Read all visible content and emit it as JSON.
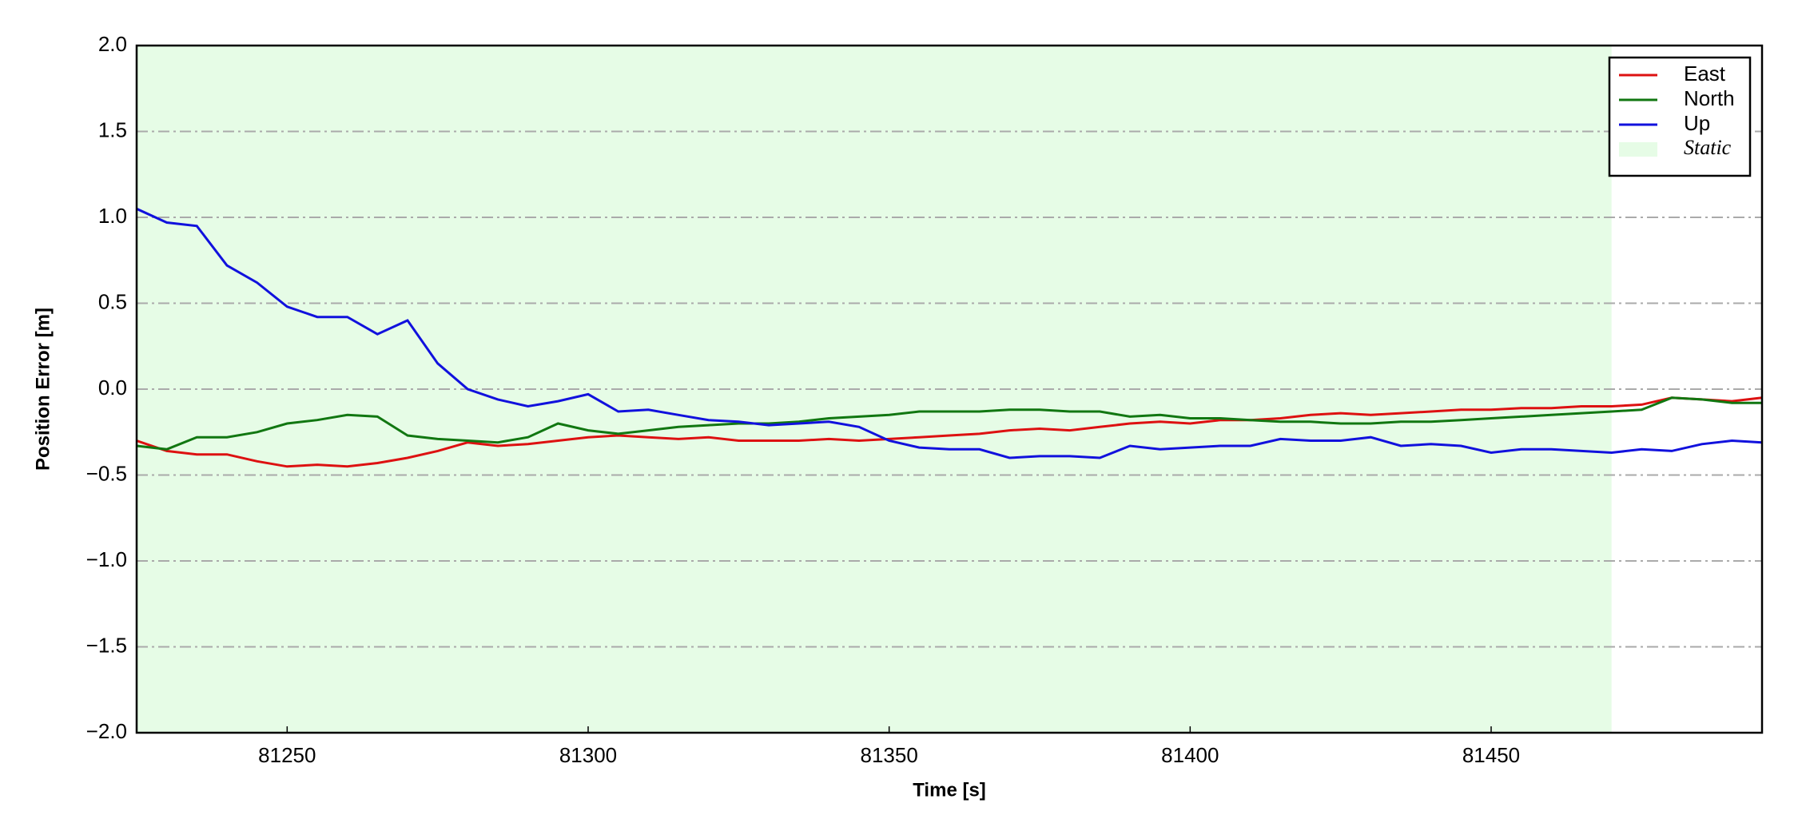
{
  "chart_data": {
    "type": "line",
    "xlabel": "Time [s]",
    "ylabel": "Position Error [m]",
    "x": [
      81225,
      81230,
      81235,
      81240,
      81245,
      81250,
      81255,
      81260,
      81265,
      81270,
      81275,
      81280,
      81285,
      81290,
      81295,
      81300,
      81305,
      81310,
      81315,
      81320,
      81325,
      81330,
      81335,
      81340,
      81345,
      81350,
      81355,
      81360,
      81365,
      81370,
      81375,
      81380,
      81385,
      81390,
      81395,
      81400,
      81405,
      81410,
      81415,
      81420,
      81425,
      81430,
      81435,
      81440,
      81445,
      81450,
      81455,
      81460,
      81465,
      81470,
      81475,
      81480,
      81485,
      81490,
      81495
    ],
    "series": [
      {
        "name": "East",
        "color": "#dd1111",
        "values": [
          -0.3,
          -0.36,
          -0.38,
          -0.38,
          -0.42,
          -0.45,
          -0.44,
          -0.45,
          -0.43,
          -0.4,
          -0.36,
          -0.31,
          -0.33,
          -0.32,
          -0.3,
          -0.28,
          -0.27,
          -0.28,
          -0.29,
          -0.28,
          -0.3,
          -0.3,
          -0.3,
          -0.29,
          -0.3,
          -0.29,
          -0.28,
          -0.27,
          -0.26,
          -0.24,
          -0.23,
          -0.24,
          -0.22,
          -0.2,
          -0.19,
          -0.2,
          -0.18,
          -0.18,
          -0.17,
          -0.15,
          -0.14,
          -0.15,
          -0.14,
          -0.13,
          -0.12,
          -0.12,
          -0.11,
          -0.11,
          -0.1,
          -0.1,
          -0.09,
          -0.05,
          -0.06,
          -0.07,
          -0.05
        ]
      },
      {
        "name": "North",
        "color": "#117711",
        "values": [
          -0.33,
          -0.35,
          -0.28,
          -0.28,
          -0.25,
          -0.2,
          -0.18,
          -0.15,
          -0.16,
          -0.27,
          -0.29,
          -0.3,
          -0.31,
          -0.28,
          -0.2,
          -0.24,
          -0.26,
          -0.24,
          -0.22,
          -0.21,
          -0.2,
          -0.2,
          -0.19,
          -0.17,
          -0.16,
          -0.15,
          -0.13,
          -0.13,
          -0.13,
          -0.12,
          -0.12,
          -0.13,
          -0.13,
          -0.16,
          -0.15,
          -0.17,
          -0.17,
          -0.18,
          -0.19,
          -0.19,
          -0.2,
          -0.2,
          -0.19,
          -0.19,
          -0.18,
          -0.17,
          -0.16,
          -0.15,
          -0.14,
          -0.13,
          -0.12,
          -0.05,
          -0.06,
          -0.08,
          -0.08
        ]
      },
      {
        "name": "Up",
        "color": "#1111dd",
        "values": [
          1.05,
          0.97,
          0.95,
          0.72,
          0.62,
          0.48,
          0.42,
          0.42,
          0.32,
          0.4,
          0.15,
          0.0,
          -0.06,
          -0.1,
          -0.07,
          -0.03,
          -0.13,
          -0.12,
          -0.15,
          -0.18,
          -0.19,
          -0.21,
          -0.2,
          -0.19,
          -0.22,
          -0.3,
          -0.34,
          -0.35,
          -0.35,
          -0.4,
          -0.39,
          -0.39,
          -0.4,
          -0.33,
          -0.35,
          -0.34,
          -0.33,
          -0.33,
          -0.29,
          -0.3,
          -0.3,
          -0.28,
          -0.33,
          -0.32,
          -0.33,
          -0.37,
          -0.35,
          -0.35,
          -0.36,
          -0.37,
          -0.35,
          -0.36,
          -0.32,
          -0.3,
          -0.31
        ]
      }
    ],
    "regions": [
      {
        "name": "Static",
        "x": [
          81225,
          81470
        ],
        "color": "#e6fce6"
      }
    ],
    "xlim": [
      81225,
      81495
    ],
    "ylim": [
      -2.0,
      2.0
    ],
    "xticks": [
      81250,
      81300,
      81350,
      81400,
      81450
    ],
    "yticks": [
      {
        "value": -2.0,
        "label": "−2.0"
      },
      {
        "value": -1.5,
        "label": "−1.5"
      },
      {
        "value": -1.0,
        "label": "−1.0"
      },
      {
        "value": -0.5,
        "label": "−0.5"
      },
      {
        "value": 0.0,
        "label": "0.0"
      },
      {
        "value": 0.5,
        "label": "0.5"
      },
      {
        "value": 1.0,
        "label": "1.0"
      },
      {
        "value": 1.5,
        "label": "1.5"
      },
      {
        "value": 2.0,
        "label": "2.0"
      }
    ],
    "grid": true,
    "legend": "upper right"
  }
}
